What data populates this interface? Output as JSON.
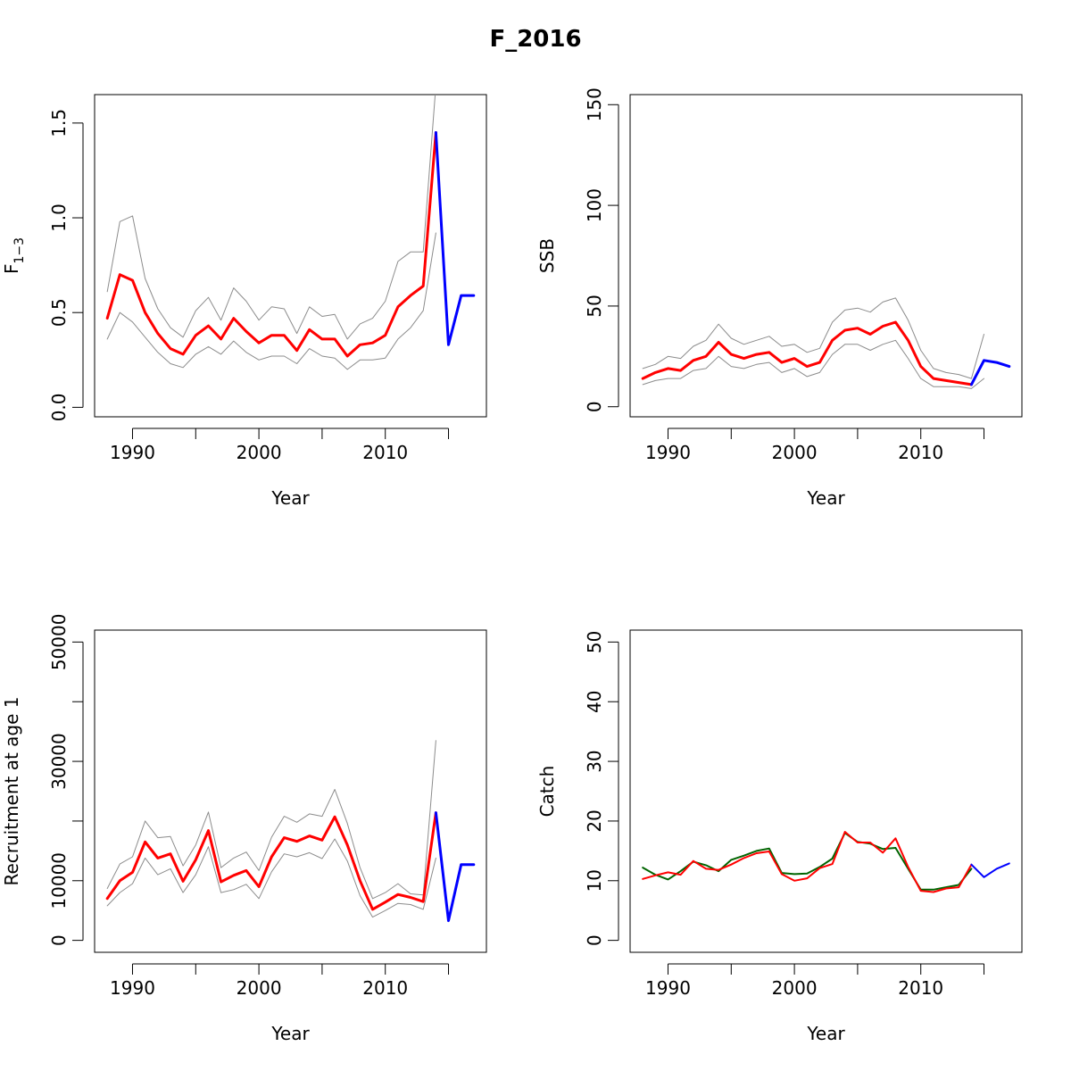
{
  "figure": {
    "title": "F_2016"
  },
  "colors": {
    "estimate": "#ff0000",
    "forecast": "#0000ff",
    "ci": "#8c8c8c",
    "observed": "#006400"
  },
  "chart_data": [
    {
      "type": "line",
      "title": "",
      "xlabel": "Year",
      "ylabel": "F",
      "ylabel_subscript": "1−3",
      "xlim": [
        1987,
        2018
      ],
      "ylim": [
        -0.05,
        1.65
      ],
      "xticks": [
        1990,
        1995,
        2000,
        2005,
        2010,
        2015
      ],
      "xtick_labels": [
        "1990",
        "",
        "2000",
        "",
        "2010",
        ""
      ],
      "yticks": [
        0.0,
        0.5,
        1.0,
        1.5
      ],
      "ytick_labels": [
        "0.0",
        "0.5",
        "1.0",
        "1.5"
      ],
      "series": [
        {
          "role": "lower",
          "color": "ci",
          "width": 1,
          "x": [
            1988,
            1989,
            1990,
            1991,
            1992,
            1993,
            1994,
            1995,
            1996,
            1997,
            1998,
            1999,
            2000,
            2001,
            2002,
            2003,
            2004,
            2005,
            2006,
            2007,
            2008,
            2009,
            2010,
            2011,
            2012,
            2013,
            2014
          ],
          "y": [
            0.36,
            0.5,
            0.45,
            0.37,
            0.29,
            0.23,
            0.21,
            0.28,
            0.32,
            0.28,
            0.35,
            0.29,
            0.25,
            0.27,
            0.27,
            0.23,
            0.31,
            0.27,
            0.26,
            0.2,
            0.25,
            0.25,
            0.26,
            0.36,
            0.42,
            0.51,
            0.92
          ]
        },
        {
          "role": "upper",
          "color": "ci",
          "width": 1,
          "x": [
            1988,
            1989,
            1990,
            1991,
            1992,
            1993,
            1994,
            1995,
            1996,
            1997,
            1998,
            1999,
            2000,
            2001,
            2002,
            2003,
            2004,
            2005,
            2006,
            2007,
            2008,
            2009,
            2010,
            2011,
            2012,
            2013,
            2014
          ],
          "y": [
            0.61,
            0.98,
            1.01,
            0.68,
            0.52,
            0.42,
            0.37,
            0.51,
            0.58,
            0.46,
            0.63,
            0.56,
            0.46,
            0.53,
            0.52,
            0.39,
            0.53,
            0.48,
            0.49,
            0.36,
            0.44,
            0.47,
            0.56,
            0.77,
            0.82,
            0.82,
            1.7
          ]
        },
        {
          "role": "estimate",
          "color": "estimate",
          "width": 3,
          "x": [
            1988,
            1989,
            1990,
            1991,
            1992,
            1993,
            1994,
            1995,
            1996,
            1997,
            1998,
            1999,
            2000,
            2001,
            2002,
            2003,
            2004,
            2005,
            2006,
            2007,
            2008,
            2009,
            2010,
            2011,
            2012,
            2013,
            2014
          ],
          "y": [
            0.47,
            0.7,
            0.67,
            0.5,
            0.39,
            0.31,
            0.28,
            0.38,
            0.43,
            0.36,
            0.47,
            0.4,
            0.34,
            0.38,
            0.38,
            0.3,
            0.41,
            0.36,
            0.36,
            0.27,
            0.33,
            0.34,
            0.38,
            0.53,
            0.59,
            0.64,
            1.45
          ]
        },
        {
          "role": "forecast",
          "color": "forecast",
          "width": 3,
          "x": [
            2014,
            2015,
            2016,
            2017
          ],
          "y": [
            1.45,
            0.33,
            0.59,
            0.59
          ]
        }
      ]
    },
    {
      "type": "line",
      "title": "",
      "xlabel": "Year",
      "ylabel": "SSB",
      "xlim": [
        1987,
        2018
      ],
      "ylim": [
        -5,
        155
      ],
      "xticks": [
        1990,
        1995,
        2000,
        2005,
        2010,
        2015
      ],
      "xtick_labels": [
        "1990",
        "",
        "2000",
        "",
        "2010",
        ""
      ],
      "yticks": [
        0,
        50,
        100,
        150
      ],
      "ytick_labels": [
        "0",
        "50",
        "100",
        "150"
      ],
      "series": [
        {
          "role": "lower",
          "color": "ci",
          "width": 1,
          "x": [
            1988,
            1989,
            1990,
            1991,
            1992,
            1993,
            1994,
            1995,
            1996,
            1997,
            1998,
            1999,
            2000,
            2001,
            2002,
            2003,
            2004,
            2005,
            2006,
            2007,
            2008,
            2009,
            2010,
            2011,
            2012,
            2013,
            2014,
            2015
          ],
          "y": [
            11,
            13,
            14,
            14,
            18,
            19,
            25,
            20,
            19,
            21,
            22,
            17,
            19,
            15,
            17,
            26,
            31,
            31,
            28,
            31,
            33,
            24,
            14,
            10,
            10,
            10,
            9,
            14
          ]
        },
        {
          "role": "upper",
          "color": "ci",
          "width": 1,
          "x": [
            1988,
            1989,
            1990,
            1991,
            1992,
            1993,
            1994,
            1995,
            1996,
            1997,
            1998,
            1999,
            2000,
            2001,
            2002,
            2003,
            2004,
            2005,
            2006,
            2007,
            2008,
            2009,
            2010,
            2011,
            2012,
            2013,
            2014,
            2015
          ],
          "y": [
            19,
            21,
            25,
            24,
            30,
            33,
            41,
            34,
            31,
            33,
            35,
            30,
            31,
            27,
            29,
            42,
            48,
            49,
            47,
            52,
            54,
            43,
            28,
            19,
            17,
            16,
            14,
            36
          ]
        },
        {
          "role": "estimate",
          "color": "estimate",
          "width": 3,
          "x": [
            1988,
            1989,
            1990,
            1991,
            1992,
            1993,
            1994,
            1995,
            1996,
            1997,
            1998,
            1999,
            2000,
            2001,
            2002,
            2003,
            2004,
            2005,
            2006,
            2007,
            2008,
            2009,
            2010,
            2011,
            2012,
            2013,
            2014
          ],
          "y": [
            14,
            17,
            19,
            18,
            23,
            25,
            32,
            26,
            24,
            26,
            27,
            22,
            24,
            20,
            22,
            33,
            38,
            39,
            36,
            40,
            42,
            33,
            20,
            14,
            13,
            12,
            11
          ]
        },
        {
          "role": "forecast",
          "color": "forecast",
          "width": 3,
          "x": [
            2014,
            2015,
            2016,
            2017
          ],
          "y": [
            11,
            23,
            22,
            20
          ]
        }
      ]
    },
    {
      "type": "line",
      "title": "",
      "xlabel": "Year",
      "ylabel": "Recruitment at age 1",
      "xlim": [
        1987,
        2018
      ],
      "ylim": [
        -2000,
        52000
      ],
      "xticks": [
        1990,
        1995,
        2000,
        2005,
        2010,
        2015
      ],
      "xtick_labels": [
        "1990",
        "",
        "2000",
        "",
        "2010",
        ""
      ],
      "yticks": [
        0,
        10000,
        20000,
        30000,
        40000,
        50000
      ],
      "ytick_labels": [
        "0",
        "10000",
        "",
        "30000",
        "",
        "50000"
      ],
      "series": [
        {
          "role": "lower",
          "color": "ci",
          "width": 1,
          "x": [
            1988,
            1989,
            1990,
            1991,
            1992,
            1993,
            1994,
            1995,
            1996,
            1997,
            1998,
            1999,
            2000,
            2001,
            2002,
            2003,
            2004,
            2005,
            2006,
            2007,
            2008,
            2009,
            2010,
            2011,
            2012,
            2013,
            2014
          ],
          "y": [
            5800,
            8000,
            9500,
            13800,
            11000,
            12000,
            8000,
            11000,
            15700,
            8000,
            8500,
            9400,
            7000,
            11500,
            14500,
            14000,
            14700,
            13700,
            17000,
            13300,
            7500,
            3900,
            5000,
            6200,
            6000,
            5200,
            13800
          ]
        },
        {
          "role": "upper",
          "color": "ci",
          "width": 1,
          "x": [
            1988,
            1989,
            1990,
            1991,
            1992,
            1993,
            1994,
            1995,
            1996,
            1997,
            1998,
            1999,
            2000,
            2001,
            2002,
            2003,
            2004,
            2005,
            2006,
            2007,
            2008,
            2009,
            2010,
            2011,
            2012,
            2013,
            2014
          ],
          "y": [
            8700,
            12800,
            14000,
            20000,
            17200,
            17400,
            12500,
            16000,
            21500,
            12200,
            13800,
            14800,
            11700,
            17300,
            20800,
            19800,
            21200,
            20800,
            25300,
            19600,
            12200,
            7000,
            8000,
            9500,
            7800,
            7600,
            33500
          ]
        },
        {
          "role": "estimate",
          "color": "estimate",
          "width": 3,
          "x": [
            1988,
            1989,
            1990,
            1991,
            1992,
            1993,
            1994,
            1995,
            1996,
            1997,
            1998,
            1999,
            2000,
            2001,
            2002,
            2003,
            2004,
            2005,
            2006,
            2007,
            2008,
            2009,
            2010,
            2011,
            2012,
            2013,
            2014
          ],
          "y": [
            7000,
            10000,
            11400,
            16500,
            13800,
            14500,
            9900,
            13500,
            18400,
            9800,
            10900,
            11700,
            9000,
            14000,
            17200,
            16600,
            17500,
            16800,
            20700,
            16000,
            10000,
            5200,
            6400,
            7700,
            7200,
            6500,
            21400
          ]
        },
        {
          "role": "forecast",
          "color": "forecast",
          "width": 3,
          "x": [
            2014,
            2015,
            2016,
            2017
          ],
          "y": [
            21400,
            3300,
            12700,
            12700
          ]
        }
      ]
    },
    {
      "type": "line",
      "title": "",
      "xlabel": "Year",
      "ylabel": "Catch",
      "xlim": [
        1987,
        2018
      ],
      "ylim": [
        -2,
        52
      ],
      "xticks": [
        1990,
        1995,
        2000,
        2005,
        2010,
        2015
      ],
      "xtick_labels": [
        "1990",
        "",
        "2000",
        "",
        "2010",
        ""
      ],
      "yticks": [
        0,
        10,
        20,
        30,
        40,
        50
      ],
      "ytick_labels": [
        "0",
        "10",
        "20",
        "30",
        "40",
        "50"
      ],
      "series": [
        {
          "role": "observed",
          "color": "observed",
          "width": 2,
          "x": [
            1988,
            1989,
            1990,
            1991,
            1992,
            1993,
            1994,
            1995,
            1996,
            1997,
            1998,
            1999,
            2000,
            2001,
            2002,
            2003,
            2004,
            2005,
            2006,
            2007,
            2008,
            2009,
            2010,
            2011,
            2012,
            2013,
            2014
          ],
          "y": [
            12.2,
            11.0,
            10.2,
            11.6,
            13.2,
            12.6,
            11.6,
            13.5,
            14.2,
            15.0,
            15.4,
            11.3,
            11.1,
            11.2,
            12.3,
            13.7,
            18.0,
            16.5,
            16.2,
            15.3,
            15.5,
            12.0,
            8.5,
            8.5,
            8.9,
            9.3,
            12.0
          ]
        },
        {
          "role": "estimate",
          "color": "estimate",
          "width": 2,
          "x": [
            1988,
            1989,
            1990,
            1991,
            1992,
            1993,
            1994,
            1995,
            1996,
            1997,
            1998,
            1999,
            2000,
            2001,
            2002,
            2003,
            2004,
            2005,
            2006,
            2007,
            2008,
            2009,
            2010,
            2011,
            2012,
            2013,
            2014
          ],
          "y": [
            10.3,
            10.9,
            11.4,
            11.0,
            13.3,
            12.0,
            11.8,
            12.7,
            13.8,
            14.6,
            14.9,
            11.1,
            10.0,
            10.4,
            12.1,
            12.8,
            18.2,
            16.4,
            16.4,
            14.7,
            17.1,
            12.3,
            8.3,
            8.1,
            8.7,
            8.9,
            12.7
          ]
        },
        {
          "role": "forecast",
          "color": "forecast",
          "width": 2,
          "x": [
            2014,
            2015,
            2016,
            2017
          ],
          "y": [
            12.7,
            10.6,
            12.0,
            12.9
          ]
        }
      ]
    }
  ]
}
